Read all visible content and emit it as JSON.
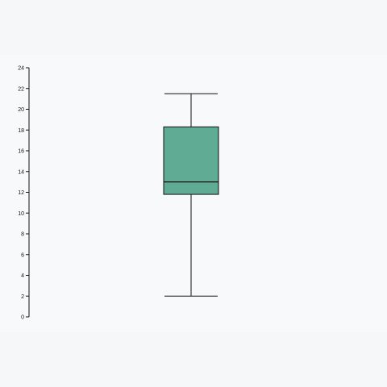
{
  "chart_data": {
    "type": "boxplot",
    "title": "",
    "xlabel": "",
    "ylabel": "",
    "ylim": [
      0,
      24
    ],
    "yticks": [
      0,
      2,
      4,
      6,
      8,
      10,
      12,
      14,
      16,
      18,
      20,
      22,
      24
    ],
    "grid": false,
    "legend": "none",
    "boxes": [
      {
        "min": 2,
        "q1": 11.8,
        "median": 13,
        "q3": 18.3,
        "max": 21.5
      }
    ],
    "colors": {
      "box_fill": "#5fab94",
      "stroke": "#111111",
      "axis": "#111111"
    }
  }
}
